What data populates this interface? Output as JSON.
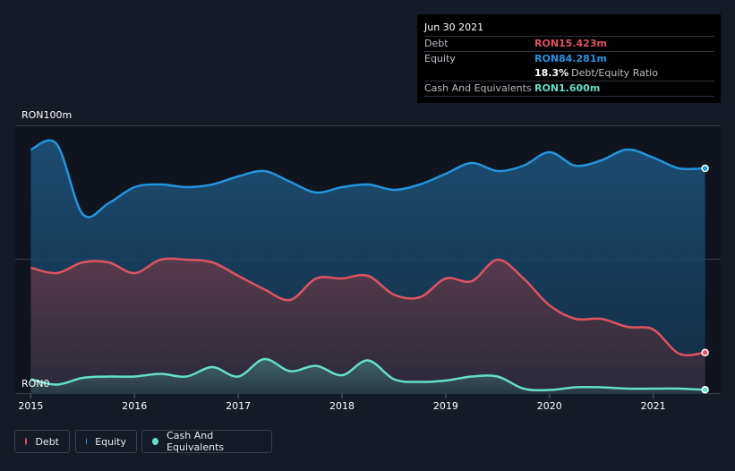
{
  "tooltip": {
    "date": "Jun 30 2021",
    "debt_label": "Debt",
    "debt_value": "RON15.423m",
    "equity_label": "Equity",
    "equity_value": "RON84.281m",
    "ratio_value": "18.3%",
    "ratio_label": "Debt/Equity Ratio",
    "cash_label": "Cash And Equivalents",
    "cash_value": "RON1.600m"
  },
  "legend": {
    "debt": "Debt",
    "equity": "Equity",
    "cash": "Cash And Equivalents"
  },
  "colors": {
    "debt": "#e05260",
    "equity": "#2394df",
    "cash": "#64e0c8"
  },
  "chart_data": {
    "type": "area",
    "x_unit": "year",
    "x_range": [
      2015.0,
      2021.5
    ],
    "xlim": [
      2014.85,
      2021.65
    ],
    "ylim": [
      0,
      100
    ],
    "ytick_labels": [
      "RON100m",
      "RON0"
    ],
    "xtick_labels": [
      "2015",
      "2016",
      "2017",
      "2018",
      "2019",
      "2020",
      "2021"
    ],
    "series": [
      {
        "name": "Equity",
        "x": [
          2015.0,
          2015.25,
          2015.5,
          2015.75,
          2016.0,
          2016.25,
          2016.5,
          2016.75,
          2017.0,
          2017.25,
          2017.5,
          2017.75,
          2018.0,
          2018.25,
          2018.5,
          2018.75,
          2019.0,
          2019.25,
          2019.5,
          2019.75,
          2020.0,
          2020.25,
          2020.5,
          2020.75,
          2021.0,
          2021.25,
          2021.5
        ],
        "values": [
          91,
          93,
          67,
          71,
          77,
          78,
          77,
          78,
          81,
          83,
          79,
          75,
          77,
          78,
          76,
          78,
          82,
          86,
          83,
          85,
          90,
          85,
          87,
          91,
          88,
          84,
          84
        ]
      },
      {
        "name": "Debt",
        "x": [
          2015.0,
          2015.25,
          2015.5,
          2015.75,
          2016.0,
          2016.25,
          2016.5,
          2016.75,
          2017.0,
          2017.25,
          2017.5,
          2017.75,
          2018.0,
          2018.25,
          2018.5,
          2018.75,
          2019.0,
          2019.25,
          2019.5,
          2019.75,
          2020.0,
          2020.25,
          2020.5,
          2020.75,
          2021.0,
          2021.25,
          2021.5
        ],
        "values": [
          47,
          45,
          49,
          49,
          45,
          50,
          50,
          49,
          44,
          39,
          35,
          43,
          43,
          44,
          37,
          36,
          43,
          42,
          50,
          43,
          33,
          28,
          28,
          25,
          24,
          15,
          15.4
        ]
      },
      {
        "name": "Cash And Equivalents",
        "x": [
          2015.0,
          2015.25,
          2015.5,
          2015.75,
          2016.0,
          2016.25,
          2016.5,
          2016.75,
          2017.0,
          2017.25,
          2017.5,
          2017.75,
          2018.0,
          2018.25,
          2018.5,
          2018.75,
          2019.0,
          2019.25,
          2019.5,
          2019.75,
          2020.0,
          2020.25,
          2020.5,
          2020.75,
          2021.0,
          2021.25,
          2021.5
        ],
        "values": [
          5.5,
          3.5,
          6,
          6.5,
          6.5,
          7.5,
          6.5,
          10,
          6.5,
          13,
          8.5,
          10.5,
          7,
          12.5,
          5.5,
          4.5,
          5,
          6.5,
          6.5,
          2,
          1.5,
          2.5,
          2.5,
          2,
          2,
          2,
          1.6
        ]
      }
    ]
  }
}
